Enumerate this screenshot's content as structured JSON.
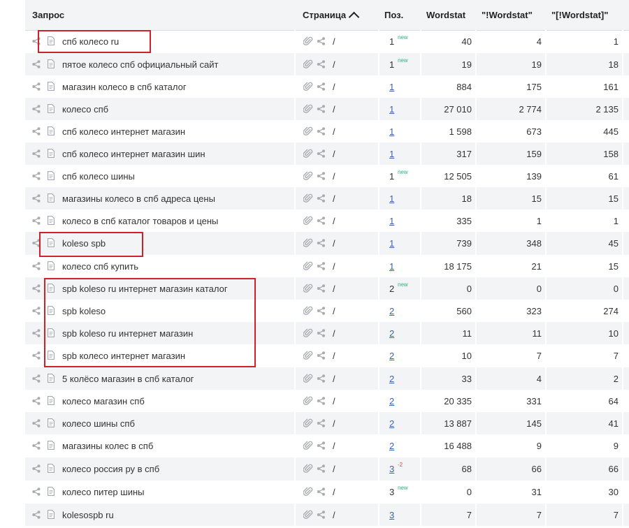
{
  "header": {
    "query": "Запрос",
    "page": "Страница",
    "pos": "Поз.",
    "ws1": "Wordstat",
    "ws2": "\"!Wordstat\"",
    "ws3": "\"[!Wordstat]\""
  },
  "rows": [
    {
      "q": "спб колесо ru",
      "pos": "1",
      "link": false,
      "tag": "new",
      "ws1": "40",
      "ws2": "4",
      "ws3": "1"
    },
    {
      "q": "пятое колесо спб официальный сайт",
      "pos": "1",
      "link": false,
      "tag": "new",
      "ws1": "19",
      "ws2": "19",
      "ws3": "18"
    },
    {
      "q": "магазин колесо в спб каталог",
      "pos": "1",
      "link": true,
      "tag": "",
      "ws1": "884",
      "ws2": "175",
      "ws3": "161"
    },
    {
      "q": "колесо спб",
      "pos": "1",
      "link": true,
      "tag": "",
      "ws1": "27 010",
      "ws2": "2 774",
      "ws3": "2 135"
    },
    {
      "q": "спб колесо интернет магазин",
      "pos": "1",
      "link": true,
      "tag": "",
      "ws1": "1 598",
      "ws2": "673",
      "ws3": "445"
    },
    {
      "q": "спб колесо интернет магазин шин",
      "pos": "1",
      "link": true,
      "tag": "",
      "ws1": "317",
      "ws2": "159",
      "ws3": "158"
    },
    {
      "q": "спб колесо шины",
      "pos": "1",
      "link": false,
      "tag": "new",
      "ws1": "12 505",
      "ws2": "139",
      "ws3": "61"
    },
    {
      "q": "магазины колесо в спб адреса цены",
      "pos": "1",
      "link": true,
      "tag": "",
      "ws1": "18",
      "ws2": "15",
      "ws3": "15"
    },
    {
      "q": "колесо в спб каталог товаров и цены",
      "pos": "1",
      "link": true,
      "tag": "",
      "ws1": "335",
      "ws2": "1",
      "ws3": "1"
    },
    {
      "q": "koleso spb",
      "pos": "1",
      "link": true,
      "tag": "",
      "ws1": "739",
      "ws2": "348",
      "ws3": "45"
    },
    {
      "q": "колесо спб купить",
      "pos": "1",
      "link": true,
      "tag": "",
      "ws1": "18 175",
      "ws2": "21",
      "ws3": "15"
    },
    {
      "q": "spb koleso ru интернет магазин каталог",
      "pos": "2",
      "link": false,
      "tag": "new",
      "ws1": "0",
      "ws2": "0",
      "ws3": "0"
    },
    {
      "q": "spb koleso",
      "pos": "2",
      "link": true,
      "tag": "",
      "ws1": "560",
      "ws2": "323",
      "ws3": "274"
    },
    {
      "q": "spb koleso ru интернет магазин",
      "pos": "2",
      "link": true,
      "tag": "",
      "ws1": "11",
      "ws2": "11",
      "ws3": "10"
    },
    {
      "q": "spb колесо интернет магазин",
      "pos": "2",
      "link": true,
      "tag": "",
      "ws1": "10",
      "ws2": "7",
      "ws3": "7"
    },
    {
      "q": "5 колёсо магазин в спб каталог",
      "pos": "2",
      "link": true,
      "tag": "",
      "ws1": "33",
      "ws2": "4",
      "ws3": "2"
    },
    {
      "q": "колесо магазин спб",
      "pos": "2",
      "link": true,
      "tag": "",
      "ws1": "20 335",
      "ws2": "331",
      "ws3": "64"
    },
    {
      "q": "колесо шины спб",
      "pos": "2",
      "link": true,
      "tag": "",
      "ws1": "13 887",
      "ws2": "145",
      "ws3": "41"
    },
    {
      "q": "магазины колес в спб",
      "pos": "2",
      "link": true,
      "tag": "",
      "ws1": "16 488",
      "ws2": "9",
      "ws3": "9"
    },
    {
      "q": "колесо россия ру в спб",
      "pos": "3",
      "link": true,
      "tag": "-2",
      "ws1": "68",
      "ws2": "66",
      "ws3": "66"
    },
    {
      "q": "колесо питер шины",
      "pos": "3",
      "link": false,
      "tag": "new",
      "ws1": "0",
      "ws2": "31",
      "ws3": "30"
    },
    {
      "q": "kolesospb ru",
      "pos": "3",
      "link": true,
      "tag": "",
      "ws1": "7",
      "ws2": "7",
      "ws3": "7"
    }
  ],
  "slash": "/",
  "colors": {
    "annotation": "#d0202a",
    "link": "#3a62b0",
    "new": "#2db37a",
    "down": "#e5453b"
  }
}
